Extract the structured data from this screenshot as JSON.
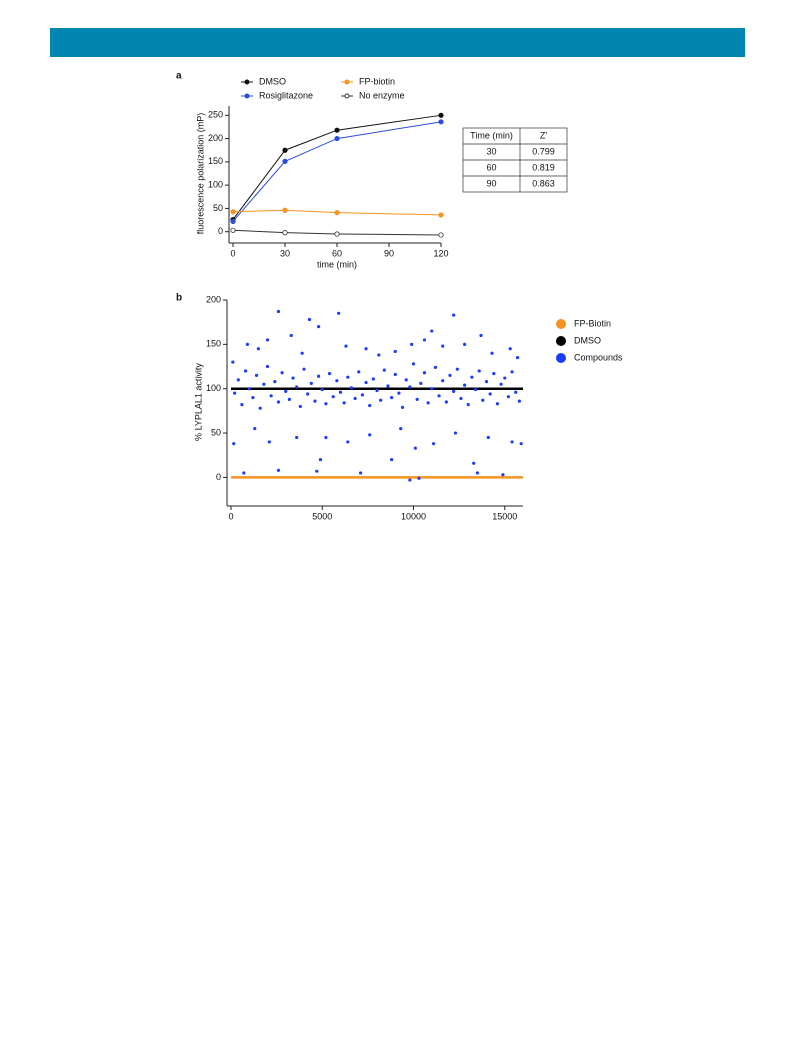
{
  "chart_data": [
    {
      "type": "line",
      "panel": "a",
      "ylabel": "fluorescence polarization (mP)",
      "xlabel": "time (min)",
      "x": [
        0,
        30,
        60,
        120
      ],
      "xlim": [
        0,
        120
      ],
      "xticks": [
        0,
        30,
        60,
        90,
        120
      ],
      "ylim": [
        -20,
        270
      ],
      "yticks": [
        0,
        50,
        100,
        150,
        200,
        250
      ],
      "legend": "top",
      "series": [
        {
          "name": "DMSO",
          "color": "#111111",
          "values": [
            26,
            175,
            218,
            250
          ]
        },
        {
          "name": "Rosiglitazone",
          "color": "#2a4de0",
          "values": [
            22,
            151,
            200,
            236
          ]
        },
        {
          "name": "FP-biotin",
          "color": "#f7931e",
          "values": [
            43,
            46,
            41,
            36
          ]
        },
        {
          "name": "No enzyme",
          "color": "#333333",
          "hollow": true,
          "values": [
            3,
            -2,
            -5,
            -7
          ]
        }
      ]
    },
    {
      "type": "scatter",
      "panel": "b",
      "ylabel": "% LYPLAL1 activity",
      "xlim": [
        0,
        16000
      ],
      "xticks": [
        0,
        5000,
        10000,
        15000
      ],
      "ylim": [
        -30,
        200
      ],
      "yticks": [
        0,
        50,
        100,
        150,
        200
      ],
      "legend": "right",
      "series": [
        {
          "name": "FP-Biotin",
          "color": "#f7931e",
          "line": true,
          "x": [
            0,
            16000
          ],
          "values": [
            0,
            0
          ]
        },
        {
          "name": "DMSO",
          "color": "#000000",
          "line": true,
          "x": [
            0,
            16000
          ],
          "values": [
            100,
            100
          ]
        },
        {
          "name": "Compounds",
          "color": "#1a3cff",
          "x": [
            200,
            400,
            600,
            800,
            1000,
            1200,
            1400,
            1600,
            1800,
            2000,
            2200,
            2400,
            2600,
            2800,
            3000,
            3200,
            3400,
            3600,
            3800,
            4000,
            4200,
            4400,
            4600,
            4800,
            5000,
            5200,
            5400,
            5600,
            5800,
            6000,
            6200,
            6400,
            6600,
            6800,
            7000,
            7200,
            7400,
            7600,
            7800,
            8000,
            8200,
            8400,
            8600,
            8800,
            9000,
            9200,
            9400,
            9600,
            9800,
            10000,
            10200,
            10400,
            10600,
            10800,
            11000,
            11200,
            11400,
            11600,
            11800,
            12000,
            12200,
            12400,
            12600,
            12800,
            13000,
            13200,
            13400,
            13600,
            13800,
            14000,
            14200,
            14400,
            14600,
            14800,
            15000,
            15200,
            15400,
            15600,
            15800,
            100,
            900,
            1500,
            2000,
            2600,
            3300,
            3900,
            4300,
            4800,
            5900,
            6300,
            7400,
            8100,
            9000,
            9900,
            10600,
            11000,
            11600,
            12200,
            12800,
            13700,
            14300,
            15300,
            15700,
            150,
            700,
            1300,
            2100,
            2600,
            3600,
            4700,
            4900,
            5200,
            6400,
            7100,
            7600,
            8800,
            9300,
            9800,
            10100,
            10300,
            11100,
            12300,
            13300,
            13500,
            14100,
            14900,
            15400,
            15900
          ],
          "values": [
            95,
            110,
            82,
            120,
            100,
            90,
            115,
            78,
            105,
            125,
            92,
            108,
            85,
            118,
            97,
            88,
            112,
            102,
            80,
            122,
            94,
            106,
            86,
            114,
            99,
            83,
            117,
            91,
            109,
            96,
            84,
            113,
            101,
            89,
            119,
            93,
            107,
            81,
            111,
            98,
            87,
            121,
            103,
            90,
            116,
            95,
            79,
            110,
            102,
            128,
            88,
            106,
            118,
            84,
            100,
            124,
            92,
            109,
            85,
            115,
            97,
            122,
            89,
            104,
            82,
            113,
            99,
            120,
            87,
            108,
            94,
            117,
            83,
            105,
            112,
            91,
            119,
            96,
            86,
            130,
            150,
            145,
            155,
            187,
            160,
            140,
            178,
            170,
            185,
            148,
            145,
            138,
            142,
            150,
            155,
            165,
            148,
            183,
            150,
            160,
            140,
            145,
            135,
            38,
            5,
            55,
            40,
            8,
            45,
            7,
            20,
            45,
            40,
            5,
            48,
            20,
            55,
            -3,
            33,
            -1,
            38,
            50,
            16,
            5,
            45,
            3,
            40,
            38
          ]
        }
      ]
    }
  ],
  "table": {
    "columns": [
      "Time (min)",
      "Z'"
    ],
    "rows": [
      [
        30,
        0.799
      ],
      [
        60,
        0.819
      ],
      [
        90,
        0.863
      ]
    ]
  }
}
